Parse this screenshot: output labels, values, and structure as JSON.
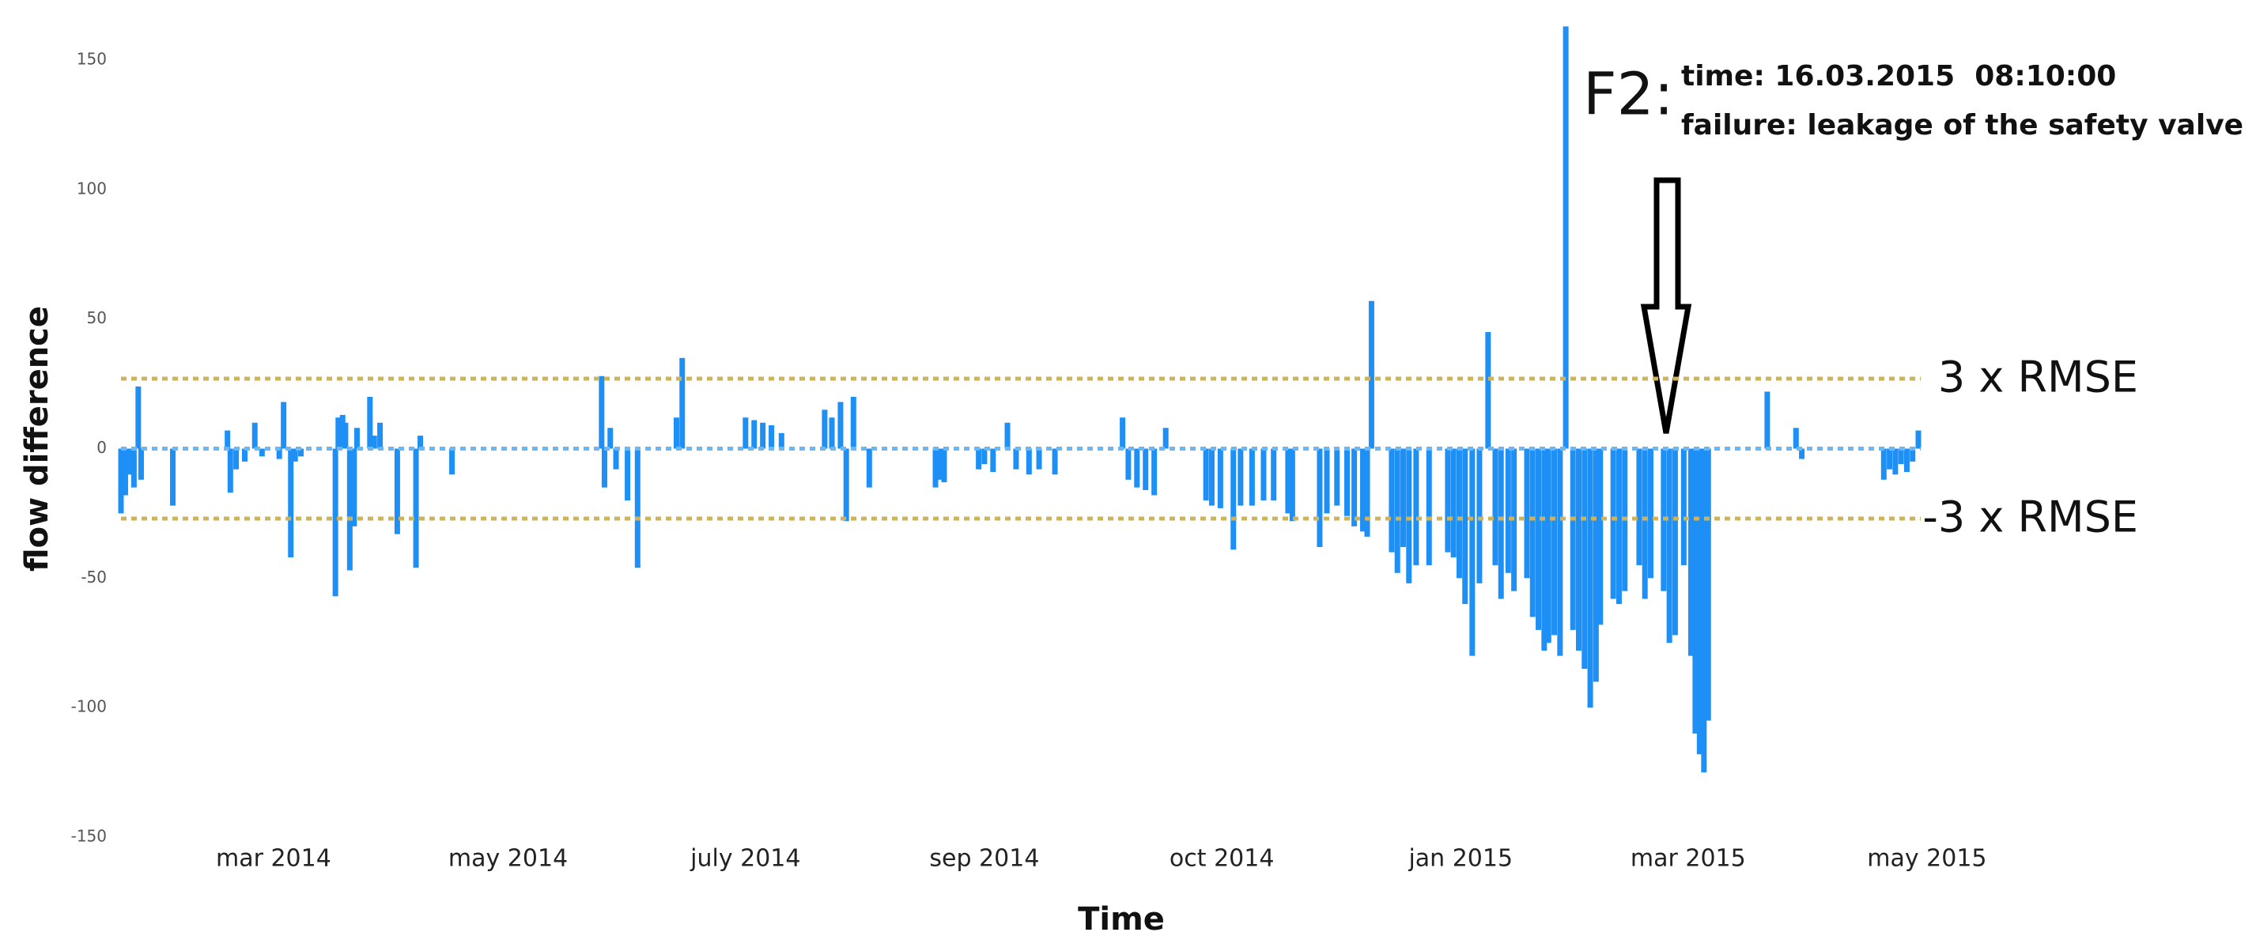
{
  "chart_data": {
    "type": "bar",
    "x_label": "Time",
    "y_label": "flow difference",
    "color": "#1e90f5",
    "grid": false,
    "xlim": [
      0,
      1260
    ],
    "xticks": [
      {
        "value": 106,
        "label": "mar 2014"
      },
      {
        "value": 269,
        "label": "may 2014"
      },
      {
        "value": 434,
        "label": "july 2014"
      },
      {
        "value": 600,
        "label": "sep 2014"
      },
      {
        "value": 765,
        "label": "oct 2014"
      },
      {
        "value": 931,
        "label": "jan 2015"
      },
      {
        "value": 1089,
        "label": "mar 2015"
      },
      {
        "value": 1255,
        "label": "may 2015"
      }
    ],
    "ylim": [
      -150,
      150
    ],
    "yticks": [
      -150,
      -100,
      -50,
      0,
      50,
      100,
      150
    ],
    "x": [
      0,
      3,
      6,
      9,
      12,
      14,
      36,
      74,
      76,
      80,
      86,
      93,
      98,
      110,
      113,
      118,
      121,
      125,
      149,
      151,
      154,
      156,
      159,
      162,
      164,
      173,
      176,
      180,
      192,
      205,
      208,
      230,
      334,
      336,
      340,
      344,
      352,
      359,
      386,
      390,
      434,
      440,
      446,
      452,
      459,
      489,
      494,
      500,
      504,
      509,
      520,
      566,
      569,
      572,
      596,
      600,
      606,
      616,
      622,
      631,
      638,
      649,
      696,
      700,
      706,
      712,
      718,
      726,
      754,
      758,
      764,
      773,
      778,
      786,
      794,
      801,
      811,
      814,
      833,
      838,
      845,
      852,
      857,
      863,
      866,
      869,
      883,
      887,
      891,
      895,
      900,
      909,
      922,
      926,
      930,
      934,
      939,
      944,
      950,
      955,
      959,
      964,
      968,
      977,
      981,
      985,
      989,
      992,
      996,
      1000,
      1004,
      1009,
      1013,
      1017,
      1021,
      1025,
      1028,
      1037,
      1041,
      1045,
      1055,
      1059,
      1063,
      1072,
      1076,
      1080,
      1086,
      1091,
      1094,
      1097,
      1100,
      1103,
      1144,
      1164,
      1168,
      1225,
      1229,
      1233,
      1237,
      1241,
      1245,
      1249
    ],
    "values": [
      -25,
      -18,
      -10,
      -15,
      24,
      -12,
      -22,
      7,
      -17,
      -8,
      -5,
      10,
      -3,
      -4,
      18,
      -42,
      -5,
      -3,
      -57,
      12,
      13,
      10,
      -47,
      -30,
      8,
      20,
      5,
      10,
      -33,
      -46,
      5,
      -10,
      28,
      -15,
      8,
      -8,
      -20,
      -46,
      12,
      35,
      12,
      11,
      10,
      9,
      6,
      15,
      12,
      18,
      -28,
      20,
      -15,
      -15,
      -12,
      -13,
      -8,
      -6,
      -9,
      10,
      -8,
      -10,
      -8,
      -10,
      12,
      -12,
      -15,
      -16,
      -18,
      8,
      -20,
      -22,
      -23,
      -39,
      -22,
      -22,
      -20,
      -20,
      -25,
      -28,
      -38,
      -25,
      -22,
      -26,
      -30,
      -32,
      -34,
      57,
      -40,
      -48,
      -38,
      -52,
      -45,
      -45,
      -40,
      -42,
      -50,
      -60,
      -80,
      -52,
      45,
      -45,
      -58,
      -48,
      -55,
      -50,
      -65,
      -70,
      -78,
      -75,
      -72,
      -80,
      163,
      -70,
      -78,
      -85,
      -100,
      -90,
      -68,
      -58,
      -60,
      -55,
      -45,
      -58,
      -50,
      -55,
      -75,
      -72,
      -45,
      -80,
      -110,
      -118,
      -125,
      -105,
      22,
      8,
      -4,
      -12,
      -8,
      -10,
      -6,
      -9,
      -5,
      7
    ],
    "reference_lines": [
      {
        "value": 27,
        "label": "3 x RMSE",
        "color": "#cdb45c"
      },
      {
        "value": -27,
        "label": "-3 x RMSE",
        "color": "#cdb45c"
      },
      {
        "value": 0,
        "color": "#6cb6f2"
      }
    ],
    "annotation": {
      "marker": "F2:",
      "lines": [
        "time: 16.03.2015  08:10:00",
        "failure: leakage of the safety valve"
      ]
    }
  }
}
